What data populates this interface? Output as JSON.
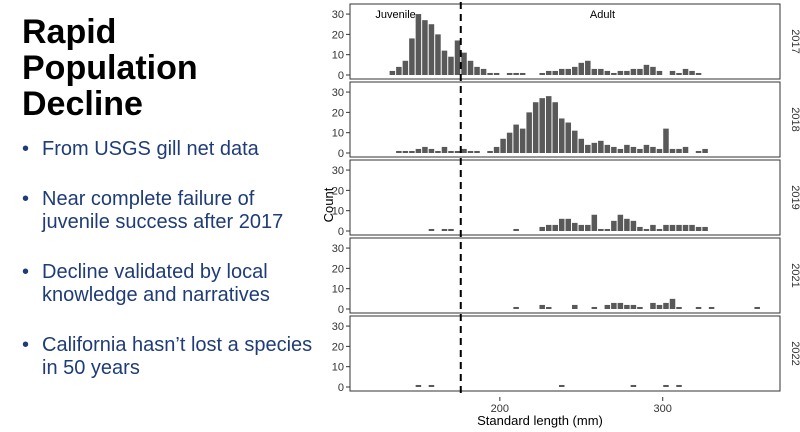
{
  "slide": {
    "title_lines": [
      "Rapid",
      "Population",
      "Decline"
    ],
    "bullet_glyph": "•",
    "bullets": [
      "From USGS gill net data",
      "Near complete failure of juvenile success after 2017",
      "Decline validated by local knowledge and narratives",
      "California hasn’t lost a species in 50 years"
    ]
  },
  "colors": {
    "bullet_text": "#1f3c78",
    "bars": "#595959",
    "divider": "#000000"
  },
  "chart_data": {
    "type": "bar",
    "xlabel": "Standard length (mm)",
    "ylabel": "Count",
    "xlim": [
      108,
      372
    ],
    "ylim": [
      0,
      32
    ],
    "xticks": [
      200,
      300
    ],
    "yticks": [
      0,
      10,
      20,
      30
    ],
    "bin_width": 4,
    "divider_x": 176,
    "grid": false,
    "annotations": [
      {
        "text": "Juvenile",
        "x": 136,
        "y": 30
      },
      {
        "text": "Adult",
        "x": 263,
        "y": 30
      }
    ],
    "panels": [
      {
        "label": "2017",
        "bars": [
          [
            134,
            2
          ],
          [
            138,
            4
          ],
          [
            142,
            7
          ],
          [
            146,
            18
          ],
          [
            150,
            30
          ],
          [
            154,
            27
          ],
          [
            158,
            25
          ],
          [
            162,
            20
          ],
          [
            166,
            12
          ],
          [
            170,
            9
          ],
          [
            174,
            17
          ],
          [
            178,
            11
          ],
          [
            182,
            7
          ],
          [
            186,
            4
          ],
          [
            190,
            3
          ],
          [
            194,
            1
          ],
          [
            198,
            1
          ],
          [
            206,
            1
          ],
          [
            210,
            1
          ],
          [
            214,
            1
          ],
          [
            226,
            1
          ],
          [
            230,
            2
          ],
          [
            234,
            2
          ],
          [
            238,
            3
          ],
          [
            242,
            3
          ],
          [
            246,
            4
          ],
          [
            250,
            6
          ],
          [
            254,
            7
          ],
          [
            258,
            3
          ],
          [
            262,
            3
          ],
          [
            266,
            2
          ],
          [
            270,
            1
          ],
          [
            274,
            2
          ],
          [
            278,
            2
          ],
          [
            282,
            3
          ],
          [
            286,
            3
          ],
          [
            290,
            5
          ],
          [
            294,
            4
          ],
          [
            298,
            2
          ],
          [
            306,
            2
          ],
          [
            310,
            1
          ],
          [
            314,
            3
          ],
          [
            318,
            2
          ],
          [
            322,
            1
          ]
        ]
      },
      {
        "label": "2018",
        "bars": [
          [
            138,
            1
          ],
          [
            142,
            1
          ],
          [
            146,
            1
          ],
          [
            150,
            2
          ],
          [
            154,
            3
          ],
          [
            158,
            2
          ],
          [
            162,
            1
          ],
          [
            166,
            3
          ],
          [
            170,
            1
          ],
          [
            174,
            1
          ],
          [
            178,
            2
          ],
          [
            182,
            1
          ],
          [
            186,
            1
          ],
          [
            194,
            1
          ],
          [
            198,
            3
          ],
          [
            202,
            7
          ],
          [
            206,
            10
          ],
          [
            210,
            14
          ],
          [
            214,
            12
          ],
          [
            218,
            20
          ],
          [
            222,
            25
          ],
          [
            226,
            27
          ],
          [
            230,
            28
          ],
          [
            234,
            25
          ],
          [
            238,
            17
          ],
          [
            242,
            15
          ],
          [
            246,
            11
          ],
          [
            250,
            7
          ],
          [
            254,
            4
          ],
          [
            258,
            5
          ],
          [
            262,
            6
          ],
          [
            266,
            4
          ],
          [
            270,
            3
          ],
          [
            274,
            2
          ],
          [
            278,
            4
          ],
          [
            282,
            3
          ],
          [
            286,
            2
          ],
          [
            290,
            4
          ],
          [
            294,
            3
          ],
          [
            298,
            2
          ],
          [
            302,
            12
          ],
          [
            306,
            2
          ],
          [
            310,
            2
          ],
          [
            314,
            3
          ],
          [
            322,
            1
          ],
          [
            326,
            2
          ]
        ]
      },
      {
        "label": "2019",
        "bars": [
          [
            158,
            1
          ],
          [
            166,
            1
          ],
          [
            170,
            1
          ],
          [
            210,
            1
          ],
          [
            226,
            2
          ],
          [
            230,
            3
          ],
          [
            234,
            3
          ],
          [
            238,
            6
          ],
          [
            242,
            6
          ],
          [
            246,
            4
          ],
          [
            250,
            3
          ],
          [
            254,
            3
          ],
          [
            258,
            8
          ],
          [
            262,
            1
          ],
          [
            266,
            1
          ],
          [
            270,
            5
          ],
          [
            274,
            8
          ],
          [
            278,
            6
          ],
          [
            282,
            5
          ],
          [
            286,
            2
          ],
          [
            290,
            1
          ],
          [
            294,
            3
          ],
          [
            298,
            1
          ],
          [
            302,
            3
          ],
          [
            306,
            3
          ],
          [
            310,
            3
          ],
          [
            314,
            3
          ],
          [
            318,
            3
          ],
          [
            322,
            2
          ],
          [
            326,
            2
          ]
        ]
      },
      {
        "label": "2021",
        "bars": [
          [
            210,
            1
          ],
          [
            226,
            2
          ],
          [
            230,
            1
          ],
          [
            246,
            2
          ],
          [
            258,
            1
          ],
          [
            266,
            2
          ],
          [
            270,
            3
          ],
          [
            274,
            3
          ],
          [
            278,
            2
          ],
          [
            282,
            2
          ],
          [
            286,
            1
          ],
          [
            294,
            3
          ],
          [
            298,
            2
          ],
          [
            302,
            3
          ],
          [
            306,
            5
          ],
          [
            310,
            1
          ],
          [
            322,
            1
          ],
          [
            330,
            1
          ],
          [
            358,
            1
          ]
        ]
      },
      {
        "label": "2022",
        "bars": [
          [
            150,
            1
          ],
          [
            158,
            1
          ],
          [
            238,
            1
          ],
          [
            282,
            1
          ],
          [
            302,
            1
          ],
          [
            310,
            1
          ]
        ]
      }
    ]
  }
}
